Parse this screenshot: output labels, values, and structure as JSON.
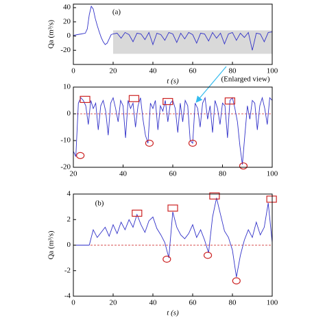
{
  "chart_data": [
    {
      "type": "line",
      "panel_label": "(a)",
      "annotation": "(Enlarged view)",
      "x_label": "t (s)",
      "y_label": "Qa (m³/s)",
      "color": "#3030c8",
      "xlim": [
        0,
        100
      ],
      "ylim": [
        -40,
        45
      ],
      "xticks": [
        0,
        20,
        40,
        60,
        80,
        100
      ],
      "yticks": [
        -20,
        0,
        20,
        40
      ],
      "shade": {
        "xlim": [
          20,
          100
        ],
        "ylim": [
          -25,
          8
        ],
        "color": "#d9d9d9"
      },
      "x": [
        0,
        2,
        4,
        6,
        7,
        8,
        9,
        10,
        11,
        12,
        13,
        14,
        15,
        16,
        17,
        18,
        19,
        20,
        22,
        24,
        26,
        28,
        30,
        32,
        34,
        36,
        38,
        40,
        42,
        44,
        46,
        48,
        50,
        52,
        54,
        56,
        58,
        60,
        62,
        64,
        66,
        68,
        70,
        72,
        74,
        76,
        78,
        80,
        82,
        84,
        86,
        88,
        90,
        92,
        94,
        96,
        98,
        100
      ],
      "values": [
        1,
        2,
        3,
        4,
        10,
        30,
        42,
        38,
        25,
        15,
        6,
        -2,
        -8,
        -12,
        -10,
        -4,
        2,
        3,
        4,
        -3,
        5,
        2,
        -8,
        4,
        3,
        -5,
        5,
        -12,
        4,
        2,
        -6,
        5,
        3,
        -9,
        4,
        -4,
        5,
        2,
        -10,
        4,
        3,
        -7,
        5,
        -3,
        4,
        -11,
        3,
        5,
        -6,
        4,
        -2,
        5,
        -20,
        4,
        3,
        -8,
        5,
        6
      ]
    },
    {
      "type": "line",
      "color": "#3030c8",
      "marker_color": "#cc2222",
      "reference_line": 0,
      "xlim": [
        20,
        100
      ],
      "ylim": [
        -20,
        10
      ],
      "xticks": [
        20,
        40,
        60,
        80,
        100
      ],
      "yticks": [
        -20,
        -10,
        0,
        10
      ],
      "x": [
        20,
        21,
        22,
        23,
        24,
        25,
        26,
        27,
        28,
        29,
        30,
        31,
        32,
        33,
        34,
        35,
        36,
        37,
        38,
        39,
        40,
        41,
        42,
        43,
        44,
        45,
        46,
        47,
        48,
        49,
        50,
        51,
        52,
        53,
        54,
        55,
        56,
        57,
        58,
        59,
        60,
        61,
        62,
        63,
        64,
        65,
        66,
        67,
        68,
        69,
        70,
        71,
        72,
        73,
        74,
        75,
        76,
        77,
        78,
        79,
        80,
        81,
        82,
        83,
        84,
        85,
        86,
        87,
        88,
        89,
        90,
        91,
        92,
        93,
        94,
        95,
        96,
        97,
        98,
        99,
        100
      ],
      "values": [
        -14,
        -16,
        4,
        6,
        5,
        3,
        -4,
        5,
        2,
        4,
        -6,
        3,
        5,
        1,
        -8,
        4,
        6,
        2,
        -3,
        5,
        3,
        -9,
        5,
        2,
        4,
        -5,
        3,
        6,
        -2,
        -8,
        -11,
        4,
        2,
        5,
        -6,
        3,
        1,
        5,
        -3,
        4,
        5,
        2,
        -7,
        4,
        -3,
        5,
        3,
        -10,
        -11,
        4,
        2,
        -5,
        4,
        6,
        -2,
        3,
        -7,
        5,
        2,
        -4,
        4,
        3,
        -9,
        5,
        6,
        2,
        -3,
        -12,
        -19,
        -8,
        3,
        -2,
        5,
        4,
        -6,
        3,
        6,
        2,
        -4,
        6,
        5
      ],
      "squares": {
        "x": [
          24.7,
          44.4,
          58,
          83
        ],
        "y": [
          5.4,
          5.7,
          4.6,
          4.8
        ]
      },
      "circles": {
        "x": [
          22.8,
          50.6,
          68,
          88.4
        ],
        "y": [
          -15.6,
          -11,
          -11,
          -19.5
        ]
      }
    },
    {
      "type": "line",
      "panel_label": "(b)",
      "x_label": "t (s)",
      "y_label": "Qa (m³/s)",
      "color": "#3030c8",
      "marker_color": "#cc2222",
      "reference_line": 0,
      "xlim": [
        0,
        100
      ],
      "ylim": [
        -4,
        4
      ],
      "xticks": [
        0,
        20,
        40,
        60,
        80,
        100
      ],
      "yticks": [
        -4,
        -2,
        0,
        2,
        4
      ],
      "x": [
        0,
        2,
        4,
        6,
        8,
        10,
        12,
        14,
        16,
        18,
        20,
        22,
        24,
        26,
        28,
        30,
        32,
        34,
        36,
        38,
        40,
        42,
        44,
        46,
        48,
        50,
        52,
        54,
        56,
        58,
        60,
        62,
        64,
        66,
        68,
        70,
        72,
        74,
        76,
        78,
        80,
        82,
        84,
        86,
        88,
        90,
        92,
        94,
        96,
        98,
        100
      ],
      "values": [
        0,
        0,
        0,
        0,
        0,
        1.2,
        0.6,
        1.0,
        1.4,
        0.7,
        1.6,
        0.9,
        1.8,
        1.2,
        2.0,
        1.4,
        2.4,
        1.6,
        1.0,
        1.9,
        2.2,
        1.3,
        0.8,
        0.2,
        -1.0,
        2.6,
        1.4,
        0.8,
        0.5,
        0.9,
        1.6,
        0.6,
        1.2,
        0.4,
        -0.6,
        2.2,
        3.7,
        2.4,
        1.1,
        0.6,
        -0.4,
        -2.5,
        -0.8,
        0.4,
        1.2,
        0.6,
        1.8,
        0.8,
        1.4,
        3.3,
        0.2
      ],
      "squares": {
        "x": [
          32,
          50,
          71,
          99.7
        ],
        "y": [
          2.5,
          2.9,
          3.85,
          3.6
        ]
      },
      "circles": {
        "x": [
          47,
          67.6,
          82
        ],
        "y": [
          -1.1,
          -0.8,
          -2.8
        ]
      }
    }
  ]
}
